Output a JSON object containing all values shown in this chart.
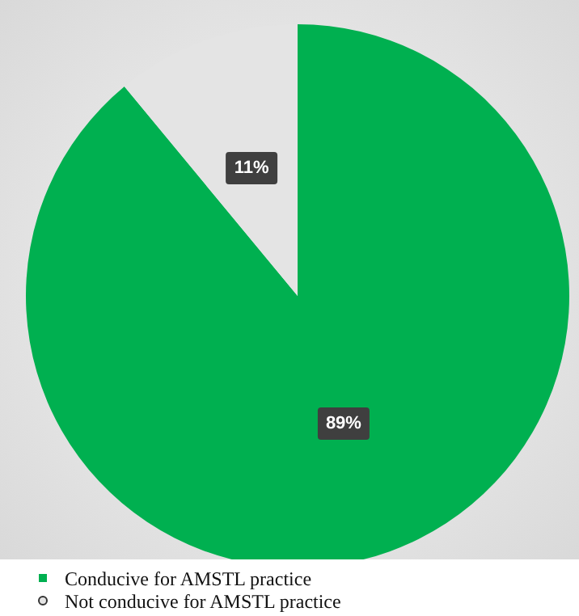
{
  "chart_data": {
    "type": "pie",
    "categories": [
      "Conducive for AMSTL practice",
      "Not conducive for AMSTL practice"
    ],
    "values": [
      89,
      11
    ],
    "colors": [
      "#00b050",
      "#e4e4e4"
    ],
    "value_labels": [
      "89%",
      "11%"
    ],
    "legend": "bottom left"
  }
}
